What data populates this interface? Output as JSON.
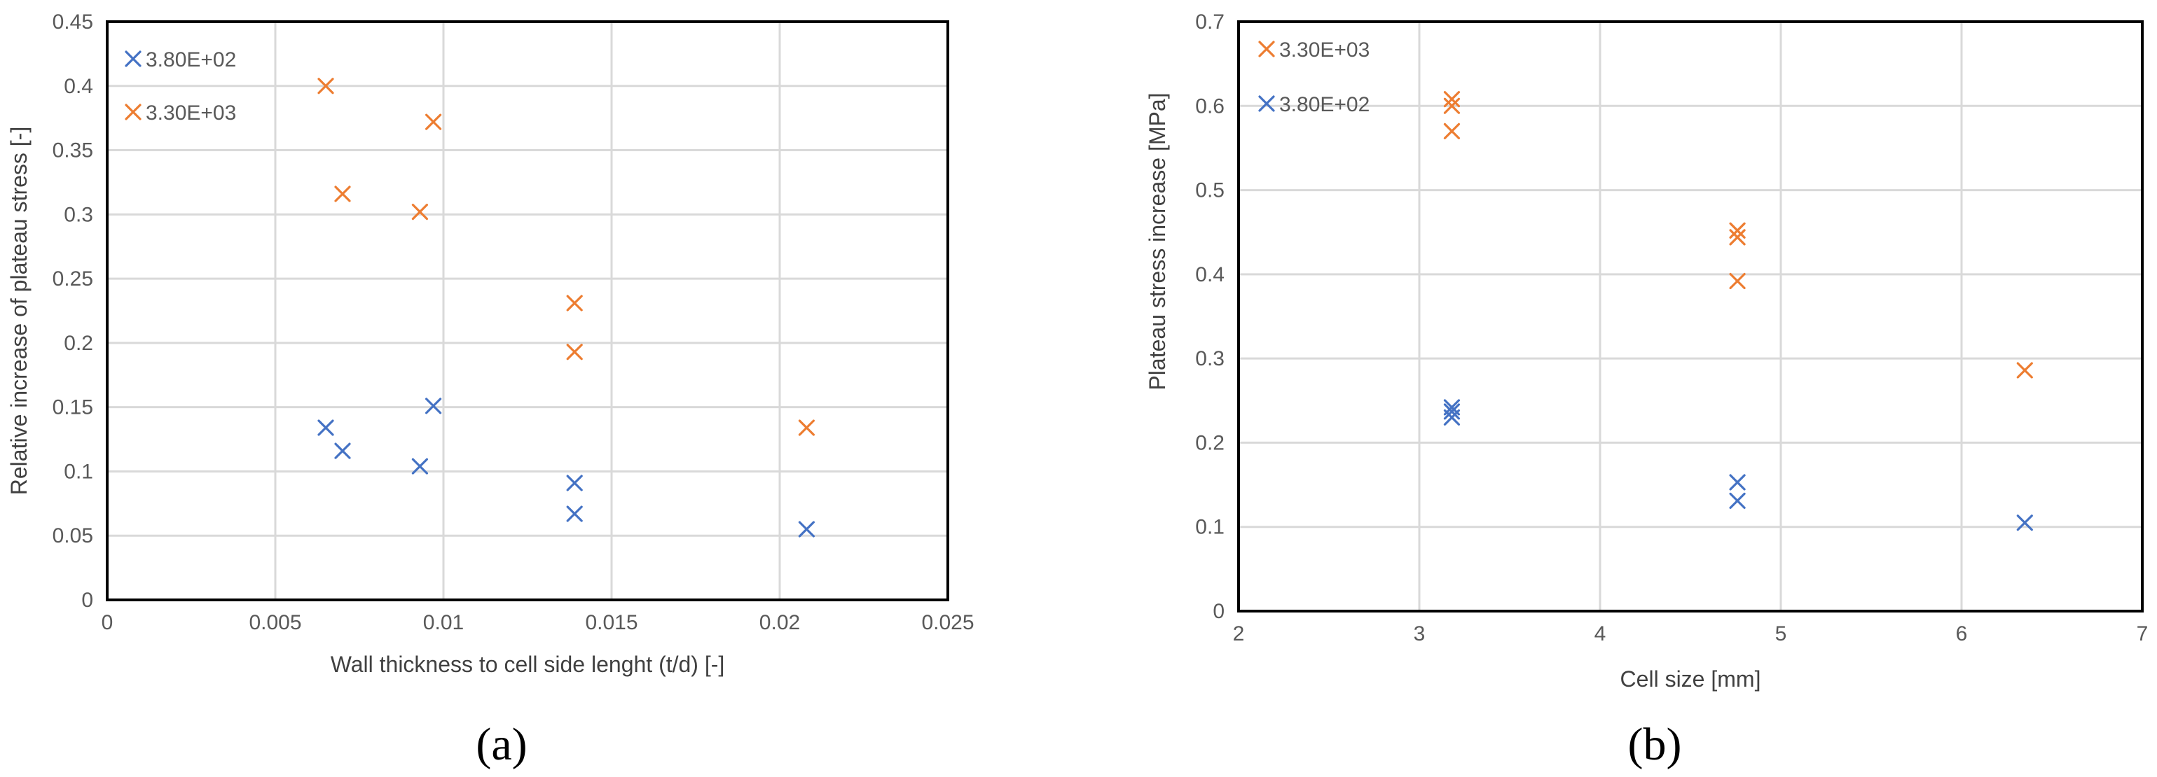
{
  "colors": {
    "blue": "#4472c4",
    "orange": "#ed7d31"
  },
  "chart_data": [
    {
      "type": "scatter",
      "panel_label": "(a)",
      "xlabel": "Wall thickness to cell side lenght (t/d) [-]",
      "ylabel": "Relative increase of plateau stress [-]",
      "xlim": [
        0,
        0.025
      ],
      "ylim": [
        0,
        0.45
      ],
      "xticks": [
        "0",
        "0.005",
        "0.01",
        "0.015",
        "0.02",
        "0.025"
      ],
      "yticks": [
        "0",
        "0.05",
        "0.1",
        "0.15",
        "0.2",
        "0.25",
        "0.3",
        "0.35",
        "0.4",
        "0.45"
      ],
      "legend_position": "top-left",
      "grid": true,
      "series": [
        {
          "name": "3.80E+02",
          "color": "#4472c4",
          "marker": "x",
          "points": [
            [
              0.0065,
              0.134
            ],
            [
              0.007,
              0.116
            ],
            [
              0.0093,
              0.104
            ],
            [
              0.0097,
              0.151
            ],
            [
              0.0139,
              0.091
            ],
            [
              0.0139,
              0.067
            ],
            [
              0.0208,
              0.055
            ]
          ]
        },
        {
          "name": "3.30E+03",
          "color": "#ed7d31",
          "marker": "x",
          "points": [
            [
              0.0065,
              0.4
            ],
            [
              0.007,
              0.316
            ],
            [
              0.0093,
              0.302
            ],
            [
              0.0097,
              0.372
            ],
            [
              0.0139,
              0.231
            ],
            [
              0.0139,
              0.193
            ],
            [
              0.0208,
              0.134
            ]
          ]
        }
      ]
    },
    {
      "type": "scatter",
      "panel_label": "(b)",
      "xlabel": "Cell size [mm]",
      "ylabel": "Plateau stress increase [MPa]",
      "xlim": [
        2,
        7
      ],
      "ylim": [
        0,
        0.7
      ],
      "xticks": [
        "2",
        "3",
        "4",
        "5",
        "6",
        "7"
      ],
      "yticks": [
        "0",
        "0.1",
        "0.2",
        "0.3",
        "0.4",
        "0.5",
        "0.6",
        "0.7"
      ],
      "legend_position": "top-left",
      "grid": true,
      "series": [
        {
          "name": "3.30E+03",
          "color": "#ed7d31",
          "marker": "x",
          "points": [
            [
              3.18,
              0.608
            ],
            [
              3.18,
              0.6
            ],
            [
              3.18,
              0.57
            ],
            [
              4.76,
              0.452
            ],
            [
              4.76,
              0.444
            ],
            [
              4.76,
              0.392
            ],
            [
              6.35,
              0.286
            ]
          ]
        },
        {
          "name": "3.80E+02",
          "color": "#4472c4",
          "marker": "x",
          "points": [
            [
              3.18,
              0.242
            ],
            [
              3.18,
              0.237
            ],
            [
              3.18,
              0.23
            ],
            [
              4.76,
              0.153
            ],
            [
              4.76,
              0.131
            ],
            [
              6.35,
              0.105
            ]
          ]
        }
      ]
    }
  ]
}
